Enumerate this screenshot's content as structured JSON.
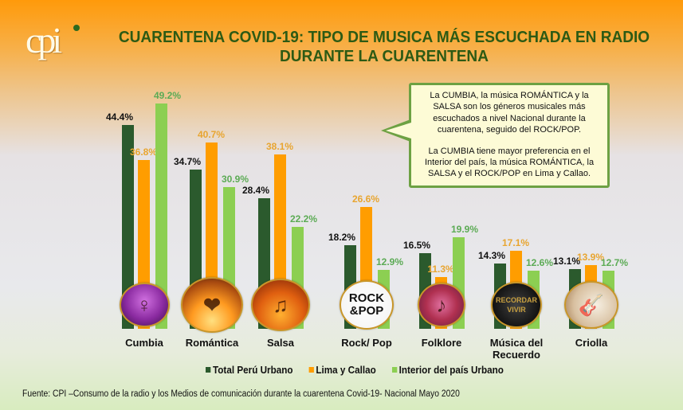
{
  "header": {
    "logo_text": "cpi",
    "title_line1": "CUARENTENA COVID-19: TIPO DE MUSICA MÁS ESCUCHADA EN RADIO",
    "title_line2": "DURANTE LA CUARENTENA"
  },
  "callout": {
    "paragraph1": "La CUMBIA, la música ROMÁNTICA y la SALSA son los géneros musicales más escuchados a nivel Nacional durante la cuarentena, seguido del ROCK/POP.",
    "paragraph2": "La CUMBIA tiene mayor preferencia en el Interior del país, la música ROMÁNTICA, la SALSA  y el ROCK/POP en Lima y Callao."
  },
  "legend": {
    "items": [
      {
        "label": "Total Perú Urbano",
        "color": "#2b5a2d"
      },
      {
        "label": "Lima y Callao",
        "color": "#ff9d00"
      },
      {
        "label": "Interior del país Urbano",
        "color": "#8ccf52"
      }
    ]
  },
  "footer": {
    "source": "Fuente: CPI –Consumo de la radio y los Medios de comunicación durante la cuarentena Covid-19-  Nacional Mayo 2020"
  },
  "icons": [
    "cumbia-dancer-icon",
    "romantic-couple-icon",
    "salsa-dancers-icon",
    "rock-pop-logo-icon",
    "folklore-performer-icon",
    "recordar-es-vivir-icon",
    "criolla-guitar-icon"
  ],
  "chart_data": {
    "type": "bar",
    "title": "CUARENTENA COVID-19: TIPO DE MUSICA MÁS ESCUCHADA EN RADIO DURANTE LA CUARENTENA",
    "xlabel": "",
    "ylabel": "",
    "ylim": [
      0,
      55
    ],
    "grid": false,
    "legend_position": "bottom",
    "categories": [
      "Cumbia",
      "Romántica",
      "Salsa",
      "Rock/ Pop",
      "Folklore",
      "Música del Recuerdo",
      "Criolla"
    ],
    "series": [
      {
        "name": "Total Perú Urbano",
        "color": "#2b5a2d",
        "values": [
          44.4,
          34.7,
          28.4,
          18.2,
          16.5,
          14.3,
          13.1
        ],
        "labels": [
          "44.4%",
          "34.7%",
          "28.4%",
          "18.2%",
          "16.5%",
          "14.3%",
          "13.1%"
        ]
      },
      {
        "name": "Lima y Callao",
        "color": "#ff9d00",
        "values": [
          36.8,
          40.7,
          38.1,
          26.6,
          11.3,
          17.1,
          13.9
        ],
        "labels": [
          "36.8%",
          "40.7%",
          "38.1%",
          "26.6%",
          "11.3%",
          "17.1%",
          "13.9%"
        ]
      },
      {
        "name": "Interior del país Urbano",
        "color": "#8ccf52",
        "values": [
          49.2,
          30.9,
          22.2,
          12.9,
          19.9,
          12.6,
          12.7
        ],
        "labels": [
          "49.2%",
          "30.9%",
          "22.2%",
          "12.9%",
          "19.9%",
          "12.6%",
          "12.7%"
        ]
      }
    ]
  }
}
